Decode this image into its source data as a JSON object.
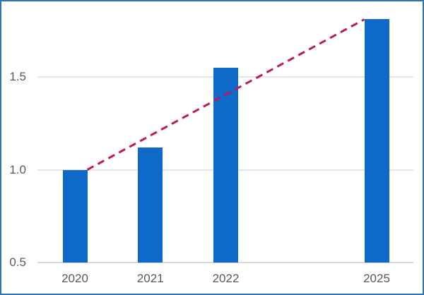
{
  "window": {
    "background": "#FFFFFF",
    "border_color": "#2E75B6"
  },
  "chart_data": {
    "type": "bar",
    "title": "",
    "xlabel": "",
    "ylabel": "",
    "categories": [
      "2020",
      "2021",
      "2022",
      "2025"
    ],
    "values": [
      1.0,
      1.12,
      1.55,
      1.81
    ],
    "x_slots": [
      0,
      1,
      2,
      4
    ],
    "bar_color": "#0F69C8",
    "y_axis": {
      "min": 0.5,
      "max": 1.9,
      "ticks": [
        0.5,
        1.0,
        1.5
      ],
      "tick_labels": [
        "0.5",
        "1.0",
        "1.5"
      ],
      "label_color": "#595959"
    },
    "grid": true,
    "gridline_color": "#E6E6E6",
    "baseline_color": "#D9D9D9",
    "legend": "none",
    "trend_line": {
      "from_category": "2020",
      "to_category": "2025",
      "color": "#C2185B",
      "style": "dashed"
    }
  }
}
